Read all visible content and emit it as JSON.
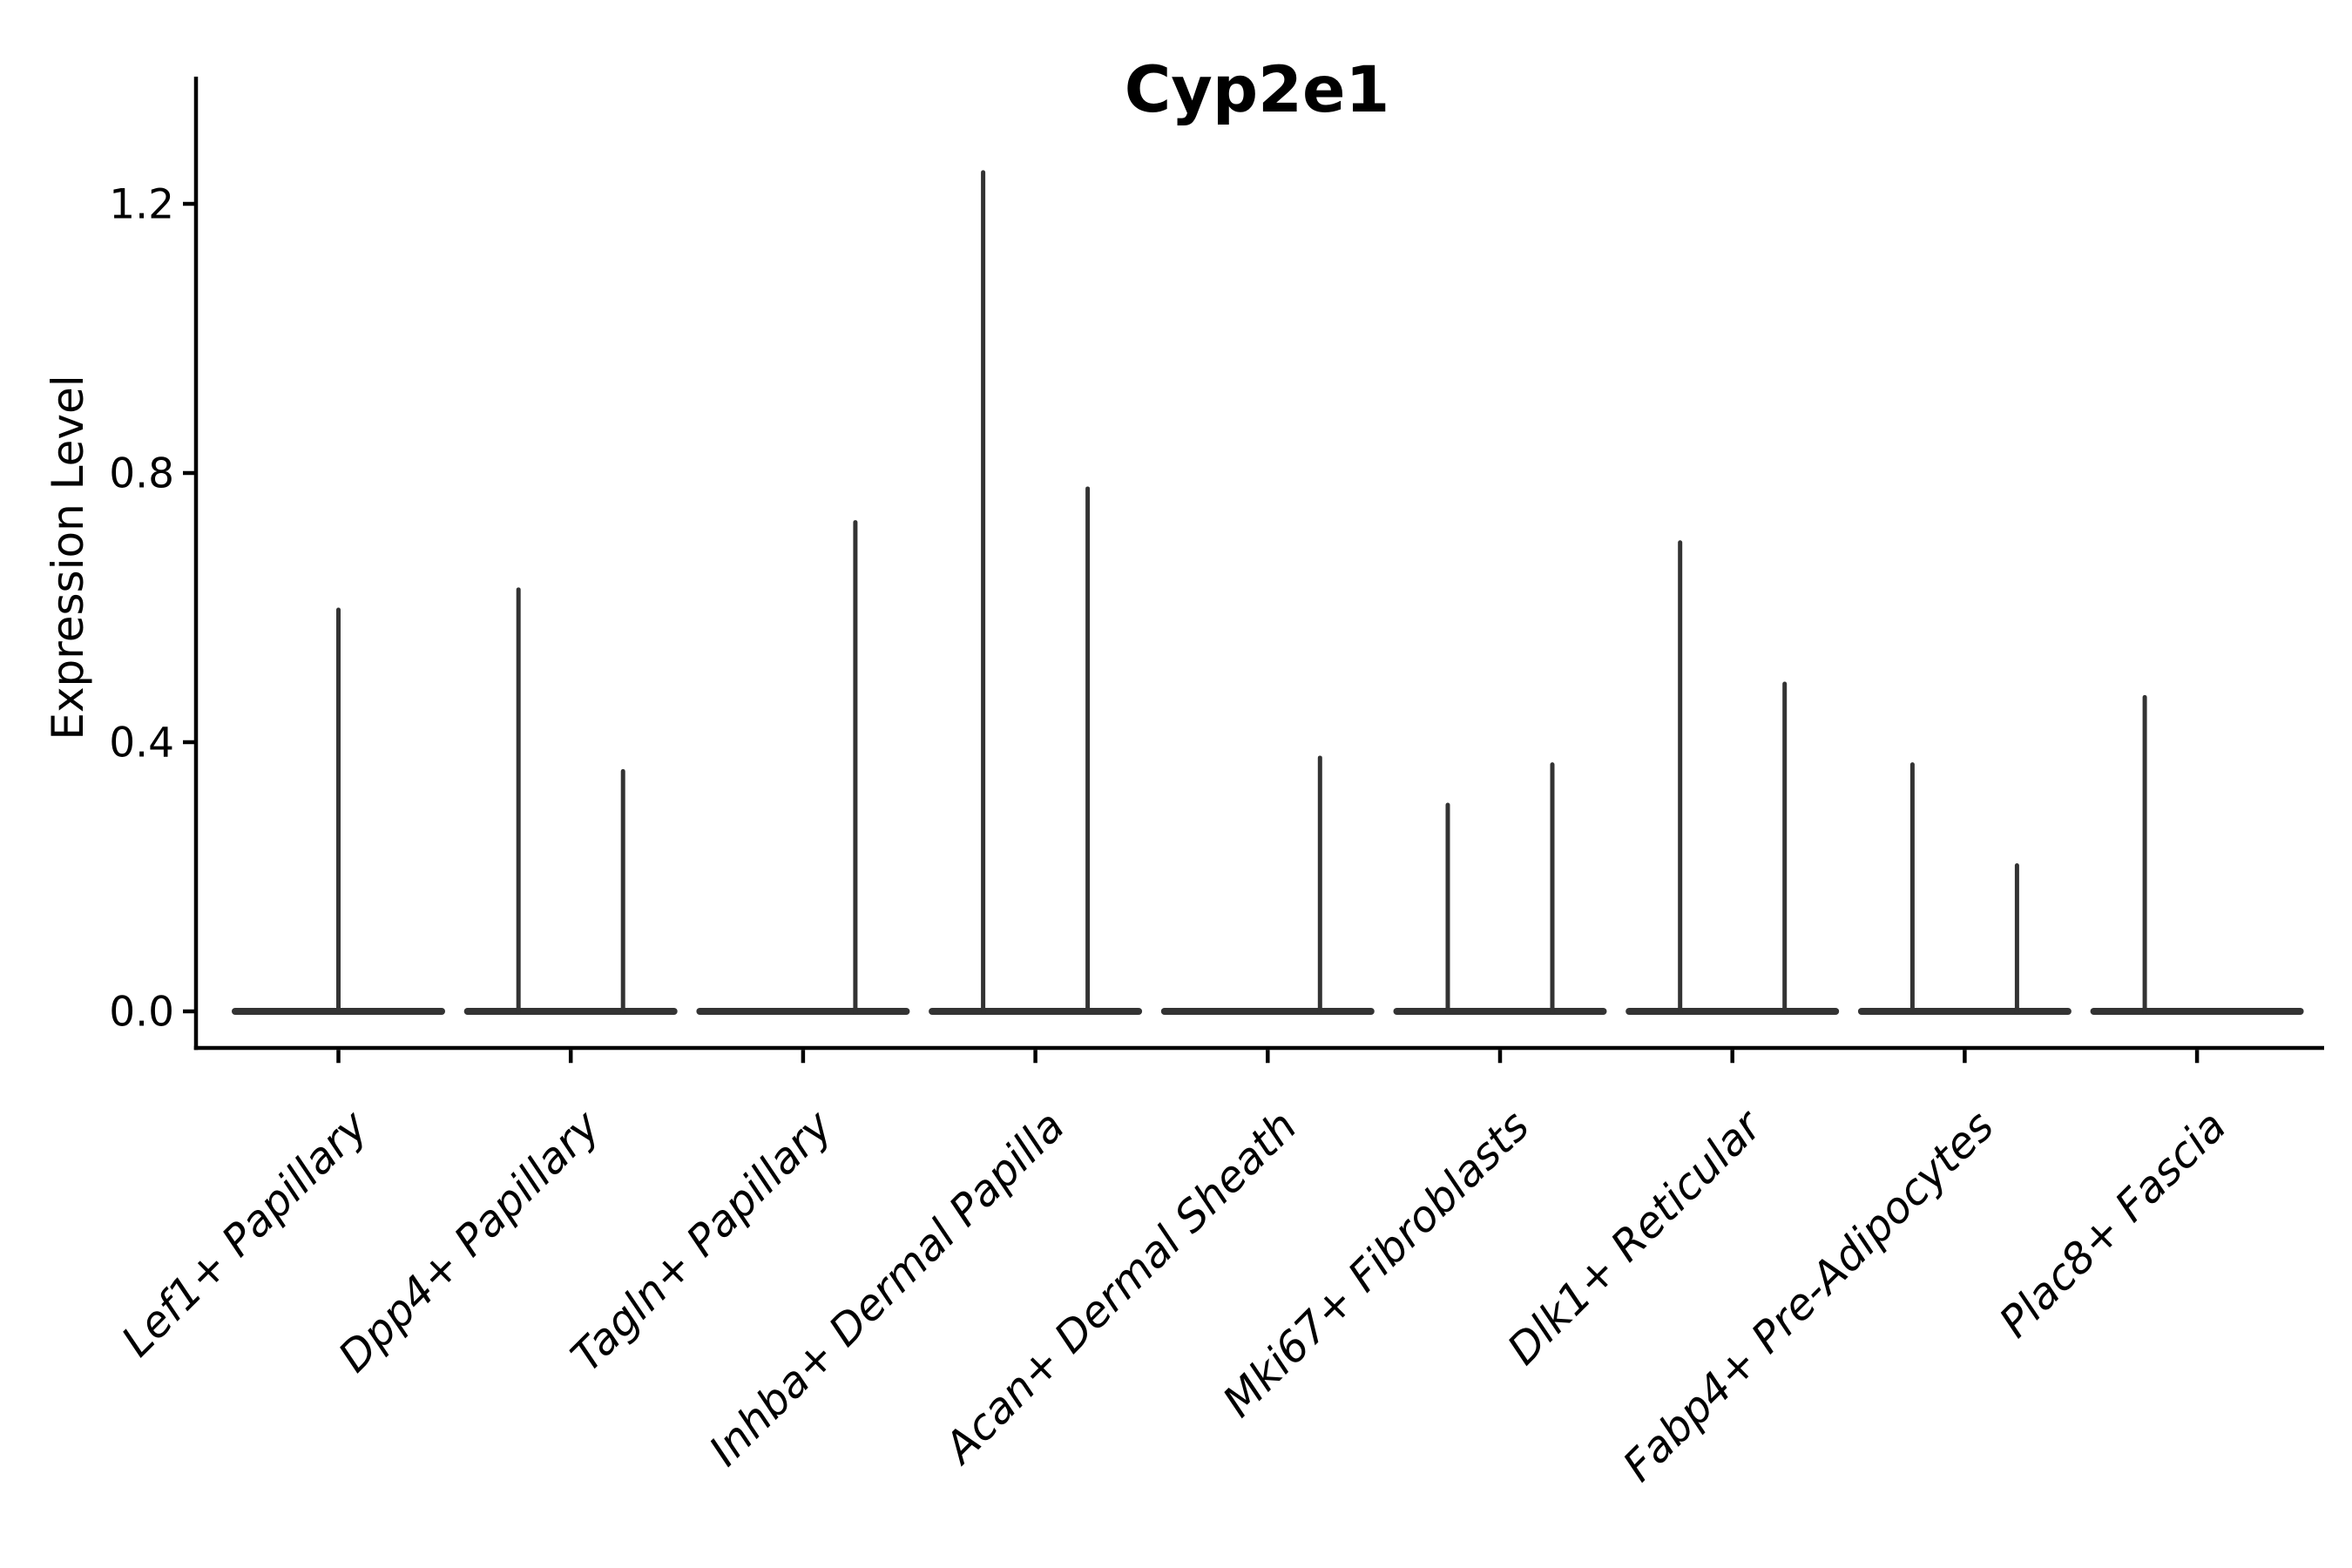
{
  "chart_data": {
    "type": "violin",
    "title": "Cyp2e1",
    "xlabel": "",
    "ylabel": "Expression Level",
    "y_tick_labels": [
      "0.0",
      "0.4",
      "0.8",
      "1.2"
    ],
    "y_tick_values": [
      0.0,
      0.4,
      0.8,
      1.2
    ],
    "ylim": [
      -0.06,
      1.39
    ],
    "grid": false,
    "legend": "none",
    "baseline_value": 0.0,
    "style": {
      "ink": "#333333",
      "axis": "#000000",
      "text": "#000000",
      "background": "#ffffff"
    },
    "categories": [
      {
        "label": "Lef1+ Papillary",
        "violins": [
          {
            "offset": 0,
            "max": 0.6
          }
        ]
      },
      {
        "label": "Dpp4+ Papillary",
        "violins": [
          {
            "offset": -0.225,
            "max": 0.63
          },
          {
            "offset": 0.225,
            "max": 0.36
          }
        ]
      },
      {
        "label": "Tagln+ Papillary",
        "violins": [
          {
            "offset": 0.225,
            "max": 0.73
          }
        ]
      },
      {
        "label": "Inhba+ Dermal Papilla",
        "violins": [
          {
            "offset": -0.225,
            "max": 1.25
          },
          {
            "offset": 0.225,
            "max": 0.78
          }
        ]
      },
      {
        "label": "Acan+ Dermal Sheath",
        "violins": [
          {
            "offset": 0.225,
            "max": 0.38
          }
        ]
      },
      {
        "label": "Mki67+ Fibroblasts",
        "violins": [
          {
            "offset": -0.225,
            "max": 0.31
          },
          {
            "offset": 0.225,
            "max": 0.37
          }
        ]
      },
      {
        "label": "Dlk1+ Reticular",
        "violins": [
          {
            "offset": -0.225,
            "max": 0.7
          },
          {
            "offset": 0.225,
            "max": 0.49
          }
        ]
      },
      {
        "label": "Fabp4+ Pre-Adipocytes",
        "violins": [
          {
            "offset": -0.225,
            "max": 0.37
          },
          {
            "offset": 0.225,
            "max": 0.22
          }
        ]
      },
      {
        "label": "Plac8+ Fascia",
        "violins": [
          {
            "offset": -0.225,
            "max": 0.47
          }
        ]
      }
    ],
    "notes": "Violin plot; violins collapsed to flat bars at 0 expression with narrow density spikes up to the max expression value per group."
  }
}
